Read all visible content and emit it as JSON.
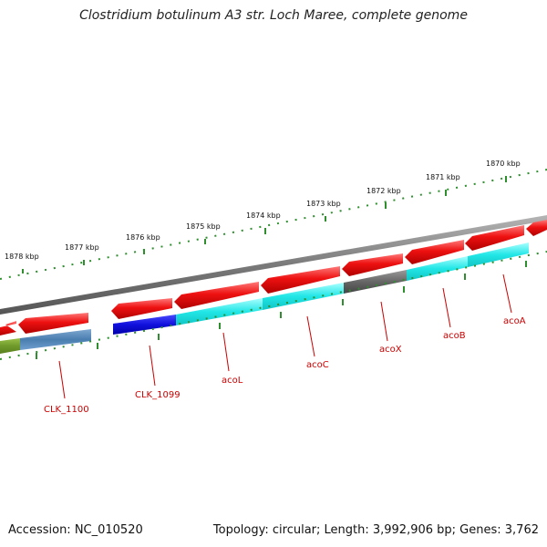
{
  "title": "Clostridium botulinum A3 str. Loch Maree, complete genome",
  "footer": {
    "accession": "Accession: NC_010520",
    "summary": "Topology: circular; Length: 3,992,906 bp; Genes: 3,762"
  },
  "colors": {
    "backbone": "#7a7a7a",
    "tick": "#2f8f2f",
    "label": "#cc0000",
    "feature_red": "#ee1111",
    "feature_cyan": "#22e6e6",
    "feature_blue": "#1111dd",
    "feature_gray": "#666666",
    "feature_steel": "#4a7eb0",
    "feature_olive": "#6f9a2a"
  },
  "kbp_labels": [
    "1878 kbp",
    "1877 kbp",
    "1876 kbp",
    "1875 kbp",
    "1874 kbp",
    "1873 kbp",
    "1872 kbp",
    "1871 kbp",
    "1870 kbp"
  ],
  "gene_labels": [
    "CLK_1100",
    "CLK_1099",
    "acoL",
    "acoC",
    "acoX",
    "acoB",
    "acoA"
  ]
}
